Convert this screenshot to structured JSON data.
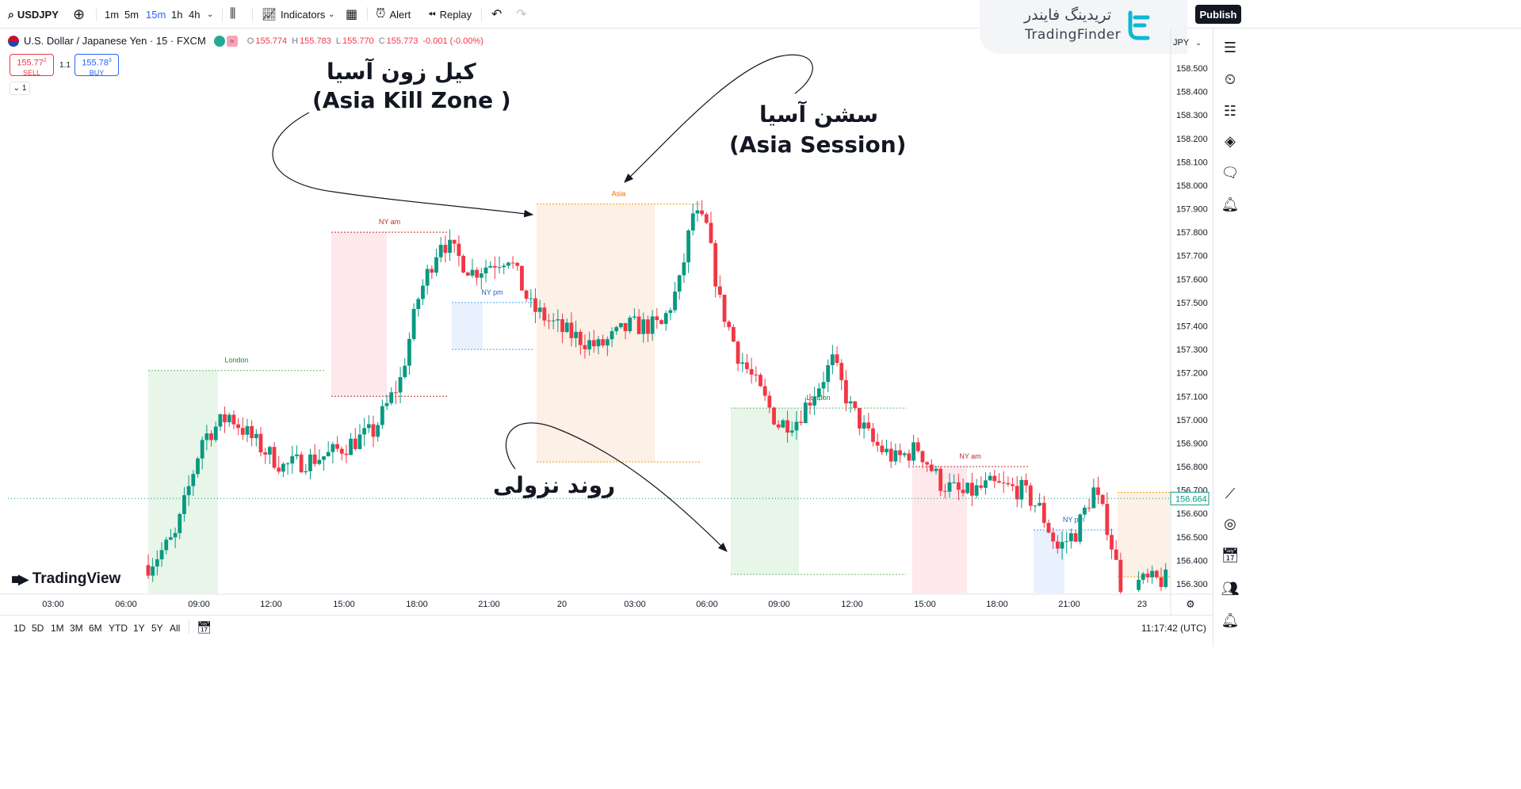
{
  "toolbar": {
    "symbol": "USDJPY",
    "intervals": [
      "1m",
      "5m",
      "15m",
      "1h",
      "4h"
    ],
    "active_interval": "15m",
    "indicators": "Indicators",
    "alert": "Alert",
    "replay": "Replay",
    "publish": "Publish"
  },
  "brand": {
    "name_fa": "تریدینگ فایندر",
    "name_en": "TradingFinder"
  },
  "legend": {
    "title": "U.S. Dollar / Japanese Yen · 15 · FXCM",
    "o_label": "O",
    "o": "155.774",
    "h_label": "H",
    "h": "155.783",
    "l_label": "L",
    "l": "155.770",
    "c_label": "C",
    "c": "155.773",
    "change": "-0.001 (-0.00%)",
    "indicator_badge": "≈"
  },
  "trade": {
    "sell_price_main": "155.77",
    "sell_price_sup": "2",
    "sell_label": "SELL",
    "spread": "1.1",
    "buy_price_main": "155.78",
    "buy_price_sup": "3",
    "buy_label": "BUY",
    "collapse_label": "1"
  },
  "price_axis": {
    "currency": "JPY",
    "labels": [
      "158.500",
      "158.400",
      "158.300",
      "158.200",
      "158.100",
      "158.000",
      "157.900",
      "157.800",
      "157.700",
      "157.600",
      "157.500",
      "157.400",
      "157.300",
      "157.200",
      "157.100",
      "157.000",
      "156.900",
      "156.800",
      "156.700",
      "156.600",
      "156.500",
      "156.400",
      "156.300"
    ],
    "last_price": "156.664"
  },
  "time_axis": {
    "labels": [
      "03:00",
      "06:00",
      "09:00",
      "12:00",
      "15:00",
      "18:00",
      "21:00",
      "20",
      "03:00",
      "06:00",
      "09:00",
      "12:00",
      "15:00",
      "18:00",
      "21:00",
      "23"
    ]
  },
  "sessions": [
    "London",
    "NY am",
    "NY pm",
    "Asia",
    "London",
    "NY am",
    "NY pm"
  ],
  "annotations": {
    "kill_zone_fa": "کیل زون آسیا",
    "kill_zone_en": "(Asia Kill Zone )",
    "session_fa": "سشن آسیا",
    "session_en": "(Asia Session)",
    "trend_fa": "روند نزولی"
  },
  "bottom": {
    "ranges": [
      "1D",
      "5D",
      "1M",
      "3M",
      "6M",
      "YTD",
      "1Y",
      "5Y",
      "All"
    ],
    "clock": "11:17:42 (UTC)"
  },
  "watermark": "TradingView",
  "colors": {
    "up": "#089981",
    "down": "#f23645",
    "london": "#e8f5e9",
    "ny_am": "#fde8ec",
    "ny_pm": "#e8f1fd",
    "asia": "#fdf0e6",
    "accent": "#2962ff"
  },
  "chart_data": {
    "type": "candlestick",
    "symbol": "USDJPY",
    "timeframe": "15m",
    "ylim": [
      156.26,
      158.6
    ],
    "x_ticks": [
      "03:00",
      "06:00",
      "09:00",
      "12:00",
      "15:00",
      "18:00",
      "21:00",
      "20",
      "03:00",
      "06:00",
      "09:00",
      "12:00",
      "15:00",
      "18:00",
      "21:00",
      "23"
    ],
    "last_price": 156.664,
    "ohlc_anchors": [
      {
        "t": 0,
        "p": 156.38
      },
      {
        "t": 6,
        "p": 156.5
      },
      {
        "t": 12,
        "p": 156.92
      },
      {
        "t": 18,
        "p": 157.02
      },
      {
        "t": 24,
        "p": 156.9
      },
      {
        "t": 30,
        "p": 156.8
      },
      {
        "t": 40,
        "p": 156.85
      },
      {
        "t": 50,
        "p": 156.95
      },
      {
        "t": 56,
        "p": 157.17
      },
      {
        "t": 60,
        "p": 157.52
      },
      {
        "t": 65,
        "p": 157.77
      },
      {
        "t": 72,
        "p": 157.63
      },
      {
        "t": 80,
        "p": 157.7
      },
      {
        "t": 85,
        "p": 157.48
      },
      {
        "t": 92,
        "p": 157.38
      },
      {
        "t": 100,
        "p": 157.31
      },
      {
        "t": 107,
        "p": 157.4
      },
      {
        "t": 114,
        "p": 157.4
      },
      {
        "t": 118,
        "p": 157.58
      },
      {
        "t": 121,
        "p": 157.88
      },
      {
        "t": 124,
        "p": 157.82
      },
      {
        "t": 127,
        "p": 157.5
      },
      {
        "t": 131,
        "p": 157.28
      },
      {
        "t": 135,
        "p": 157.15
      },
      {
        "t": 140,
        "p": 156.98
      },
      {
        "t": 144,
        "p": 157.0
      },
      {
        "t": 149,
        "p": 157.15
      },
      {
        "t": 152,
        "p": 157.25
      },
      {
        "t": 156,
        "p": 157.05
      },
      {
        "t": 161,
        "p": 156.9
      },
      {
        "t": 166,
        "p": 156.83
      },
      {
        "t": 171,
        "p": 156.88
      },
      {
        "t": 176,
        "p": 156.73
      },
      {
        "t": 181,
        "p": 156.68
      },
      {
        "t": 187,
        "p": 156.72
      },
      {
        "t": 194,
        "p": 156.7
      },
      {
        "t": 198,
        "p": 156.62
      },
      {
        "t": 202,
        "p": 156.45
      },
      {
        "t": 206,
        "p": 156.52
      },
      {
        "t": 210,
        "p": 156.7
      },
      {
        "t": 213,
        "p": 156.55
      },
      {
        "t": 216,
        "p": 156.3
      },
      {
        "t": 228,
        "p": 156.32
      },
      {
        "t": 233,
        "p": 156.4
      },
      {
        "t": 238,
        "p": 156.47
      },
      {
        "t": 244,
        "p": 156.55
      },
      {
        "t": 249,
        "p": 156.66
      }
    ],
    "session_boxes": [
      {
        "name": "London",
        "high": 157.21,
        "low": 156.26,
        "color": "#e8f5e9"
      },
      {
        "name": "NY am",
        "high": 157.8,
        "low": 157.1,
        "color": "#fde8ec"
      },
      {
        "name": "NY pm",
        "high": 157.5,
        "low": 157.3,
        "color": "#e8f1fd"
      },
      {
        "name": "Asia",
        "high": 157.92,
        "low": 156.82,
        "color": "#fdf0e6"
      },
      {
        "name": "London",
        "high": 157.05,
        "low": 156.34,
        "color": "#e8f5e9"
      },
      {
        "name": "NY am",
        "high": 156.8,
        "low": 156.26,
        "color": "#fde8ec"
      },
      {
        "name": "NY pm",
        "high": 156.53,
        "low": 156.26,
        "color": "#e8f1fd"
      }
    ]
  }
}
